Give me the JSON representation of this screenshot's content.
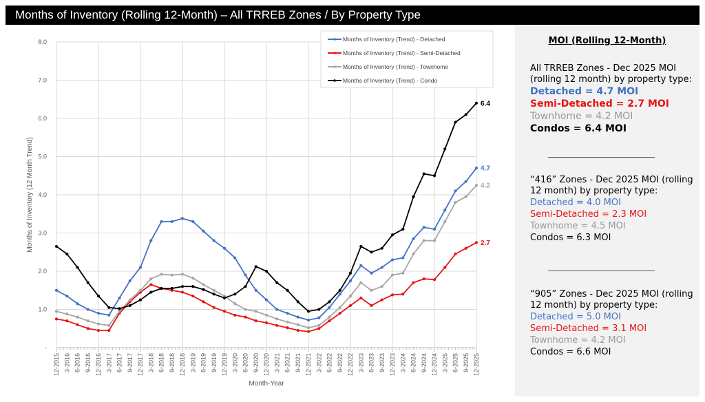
{
  "title": "Months of Inventory (Rolling 12-Month) – All TRREB Zones / By Property Type",
  "chart_data": {
    "type": "line",
    "title": "",
    "xlabel": "Month-Year",
    "ylabel": "Months of Inventory (12 Month Trend)",
    "ylim": [
      0,
      8
    ],
    "yticks": [
      "-",
      "1.0",
      "2.0",
      "3.0",
      "4.0",
      "5.0",
      "6.0",
      "7.0",
      "8.0"
    ],
    "grid": true,
    "legend_position": "top-right",
    "categories": [
      "12-2015",
      "3-2016",
      "6-2016",
      "9-2016",
      "12-2016",
      "3-2017",
      "6-2017",
      "9-2017",
      "12-2017",
      "3-2018",
      "6-2018",
      "9-2018",
      "12-2018",
      "3-2019",
      "6-2019",
      "9-2019",
      "12-2019",
      "3-2020",
      "6-2020",
      "9-2020",
      "12-2020",
      "3-2021",
      "6-2021",
      "9-2021",
      "12-2021",
      "3-2022",
      "6-2022",
      "9-2022",
      "12-2022",
      "3-2023",
      "6-2023",
      "9-2023",
      "12-2023",
      "3-2024",
      "6-2024",
      "9-2024",
      "12-2024",
      "3-2025",
      "6-2025",
      "9-2025",
      "12-2025"
    ],
    "series": [
      {
        "name": "Months of Inventory (Trend) - Detached",
        "color": "#4472c4",
        "end_label": "4.7",
        "values": [
          1.5,
          1.35,
          1.15,
          1.0,
          0.9,
          0.85,
          1.3,
          1.75,
          2.1,
          2.8,
          3.3,
          3.3,
          3.38,
          3.3,
          3.05,
          2.8,
          2.6,
          2.35,
          1.9,
          1.5,
          1.25,
          1.0,
          0.9,
          0.8,
          0.72,
          0.78,
          1.05,
          1.4,
          1.75,
          2.15,
          1.95,
          2.1,
          2.3,
          2.35,
          2.85,
          3.15,
          3.1,
          3.6,
          4.1,
          4.35,
          4.7
        ]
      },
      {
        "name": "Months of Inventory (Trend) - Semi-Detached",
        "color": "#e81414",
        "end_label": "2.7",
        "values": [
          0.75,
          0.7,
          0.6,
          0.5,
          0.45,
          0.45,
          0.9,
          1.2,
          1.45,
          1.65,
          1.55,
          1.5,
          1.45,
          1.35,
          1.2,
          1.05,
          0.95,
          0.85,
          0.8,
          0.7,
          0.65,
          0.58,
          0.52,
          0.45,
          0.42,
          0.5,
          0.7,
          0.9,
          1.1,
          1.3,
          1.1,
          1.25,
          1.38,
          1.4,
          1.7,
          1.8,
          1.78,
          2.1,
          2.45,
          2.6,
          2.75
        ]
      },
      {
        "name": "Months of Inventory (Trend) - Townhome",
        "color": "#a6a6a6",
        "end_label": "4.2",
        "values": [
          0.95,
          0.88,
          0.8,
          0.7,
          0.62,
          0.58,
          0.95,
          1.25,
          1.5,
          1.8,
          1.92,
          1.9,
          1.92,
          1.82,
          1.65,
          1.5,
          1.35,
          1.15,
          1.0,
          0.95,
          0.85,
          0.75,
          0.67,
          0.6,
          0.52,
          0.58,
          0.8,
          1.05,
          1.35,
          1.7,
          1.5,
          1.6,
          1.9,
          1.95,
          2.45,
          2.8,
          2.8,
          3.3,
          3.8,
          3.95,
          4.25
        ]
      },
      {
        "name": "Months of Inventory (Trend) - Condo",
        "color": "#000000",
        "end_label": "6.4",
        "values": [
          2.65,
          2.45,
          2.1,
          1.7,
          1.35,
          1.05,
          1.02,
          1.1,
          1.25,
          1.45,
          1.55,
          1.55,
          1.6,
          1.6,
          1.52,
          1.4,
          1.3,
          1.4,
          1.6,
          2.12,
          2.0,
          1.7,
          1.5,
          1.2,
          0.95,
          1.0,
          1.2,
          1.5,
          1.95,
          2.65,
          2.5,
          2.6,
          2.95,
          3.1,
          3.95,
          4.55,
          4.5,
          5.2,
          5.9,
          6.1,
          6.4
        ]
      }
    ]
  },
  "panel": {
    "title": "MOI (Rolling 12-Month)",
    "sections": [
      {
        "heading": "All TRREB Zones - Dec 2025 MOI (rolling 12 month) by property type:",
        "detached": "Detached = 4.7 MOI",
        "semi": "Semi-Detached = 2.7 MOI",
        "town": "Townhome = 4.2 MOI",
        "condo": "Condos = 6.4 MOI"
      },
      {
        "heading": "“416” Zones - Dec 2025 MOI (rolling 12 month) by property type:",
        "detached": "Detached = 4.0 MOI",
        "semi": "Semi-Detached = 2.3 MOI",
        "town": "Townhome = 4.5 MOI",
        "condo": "Condos = 6.3 MOI"
      },
      {
        "heading": "“905” Zones - Dec 2025 MOI (rolling 12 month) by property type:",
        "detached": "Detached = 5.0 MOI",
        "semi": "Semi-Detached = 3.1 MOI",
        "town": "Townhome = 4.2 MOI",
        "condo": "Condos = 6.6 MOI"
      }
    ]
  }
}
